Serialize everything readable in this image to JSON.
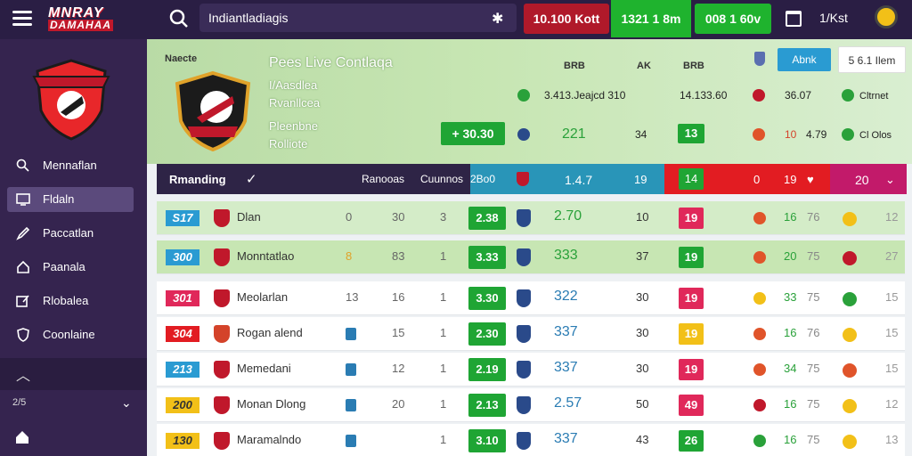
{
  "topbar": {
    "brand_line1": "MNRAY",
    "brand_line2": "DAMAHAA",
    "search_value": "Indiantladiagis",
    "pill_red": "10.100 Kott",
    "pill_green1": "1321 1 8m",
    "pill_green2": "008 1 60v",
    "user_label": "1/Kst"
  },
  "sidebar": {
    "items": [
      {
        "label": "Mennaflan"
      },
      {
        "label": "Fldaln"
      },
      {
        "label": "Paccatlan"
      },
      {
        "label": "Paanala"
      },
      {
        "label": "Rlobalea"
      },
      {
        "label": "Coonlaine"
      }
    ],
    "small_label": "2/5"
  },
  "hero": {
    "kicker": "Naecte",
    "title": "Pees Live Contlaqa",
    "lines": [
      "I/Aasdlea",
      "Rvanllcea",
      "Pleenbne",
      "Rolliote"
    ],
    "button": "+ 30.30",
    "heads": [
      "BRB",
      "AK",
      "BRB"
    ],
    "row1": [
      "3.413.Jeajcd 310",
      "14.133.60",
      "36.07"
    ],
    "row2": [
      "221",
      "34",
      "13",
      "10",
      "4.79"
    ],
    "filter_btn": "Abnk",
    "filter_btn2": "5 6.1 Ilem",
    "side_labels": [
      "Cltrnet",
      "Cl Olos"
    ]
  },
  "strip": {
    "label": "Rmanding",
    "col1": "Ranooas",
    "col2": "Cuunnos",
    "col3": "2Bo0",
    "col4": "1.4.7",
    "col5": "19",
    "col6": "14",
    "col7": "0",
    "col8": "19",
    "col9": "20"
  },
  "table": [
    {
      "rank": "S17",
      "team": "Dlan",
      "c1": "0",
      "c2": "30",
      "c3": "3",
      "g": "2.38",
      "pts": "2.70",
      "w": "10",
      "r": "19",
      "a": "16",
      "b": "76",
      "z": "12"
    },
    {
      "rank": "300",
      "team": "Monntatlao",
      "c1": "8",
      "c2": "83",
      "c3": "1",
      "g": "3.33",
      "pts": "333",
      "w": "37",
      "r": "19",
      "a": "20",
      "b": "75",
      "z": "27"
    },
    {
      "rank": "301",
      "team": "Meolarlan",
      "c1": "13",
      "c2": "16",
      "c3": "1",
      "g": "3.30",
      "pts": "322",
      "w": "30",
      "r": "19",
      "a": "33",
      "b": "75",
      "z": "15"
    },
    {
      "rank": "304",
      "team": "Rogan alend",
      "c1": "",
      "c2": "15",
      "c3": "1",
      "g": "2.30",
      "pts": "337",
      "w": "30",
      "r": "19",
      "a": "16",
      "b": "76",
      "z": "15"
    },
    {
      "rank": "213",
      "team": "Memedani",
      "c1": "",
      "c2": "12",
      "c3": "1",
      "g": "2.19",
      "pts": "337",
      "w": "30",
      "r": "19",
      "a": "34",
      "b": "75",
      "z": "15"
    },
    {
      "rank": "200",
      "team": "Monan Dlong",
      "c1": "",
      "c2": "20",
      "c3": "1",
      "g": "2.13",
      "pts": "2.57",
      "w": "50",
      "r": "49",
      "a": "16",
      "b": "75",
      "z": "12"
    },
    {
      "rank": "130",
      "team": "Maramalndo",
      "c1": "",
      "c2": "",
      "c3": "1",
      "g": "3.10",
      "pts": "337",
      "w": "43",
      "r": "26",
      "a": "16",
      "b": "75",
      "z": "13"
    }
  ],
  "colors": {
    "accent_green": "#1fa534",
    "accent_red": "#e21c22",
    "sidebar": "#35244f"
  }
}
